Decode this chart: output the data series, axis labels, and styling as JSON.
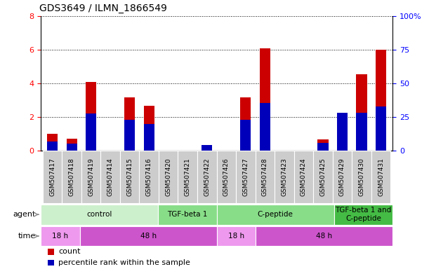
{
  "title": "GDS3649 / ILMN_1866549",
  "samples": [
    "GSM507417",
    "GSM507418",
    "GSM507419",
    "GSM507414",
    "GSM507415",
    "GSM507416",
    "GSM507420",
    "GSM507421",
    "GSM507422",
    "GSM507426",
    "GSM507427",
    "GSM507428",
    "GSM507423",
    "GSM507424",
    "GSM507425",
    "GSM507429",
    "GSM507430",
    "GSM507431"
  ],
  "count_values": [
    1.0,
    0.7,
    4.1,
    0.0,
    3.15,
    2.65,
    0.0,
    0.0,
    0.0,
    0.0,
    3.15,
    6.1,
    0.0,
    0.0,
    0.65,
    0.0,
    4.55,
    6.0
  ],
  "percentile_values": [
    7.0,
    5.0,
    27.5,
    0.0,
    23.0,
    20.0,
    0.0,
    0.0,
    4.0,
    0.0,
    23.0,
    35.5,
    0.0,
    0.0,
    5.5,
    28.0,
    28.0,
    33.0
  ],
  "ylim_left": [
    0,
    8
  ],
  "ylim_right": [
    0,
    100
  ],
  "yticks_left": [
    0,
    2,
    4,
    6,
    8
  ],
  "yticks_right": [
    0,
    25,
    50,
    75,
    100
  ],
  "count_color": "#cc0000",
  "percentile_color": "#0000bb",
  "agent_groups": [
    {
      "label": "control",
      "start": 0,
      "end": 6,
      "color": "#ccf0cc"
    },
    {
      "label": "TGF-beta 1",
      "start": 6,
      "end": 9,
      "color": "#88dd88"
    },
    {
      "label": "C-peptide",
      "start": 9,
      "end": 15,
      "color": "#88dd88"
    },
    {
      "label": "TGF-beta 1 and\nC-peptide",
      "start": 15,
      "end": 18,
      "color": "#44bb44"
    }
  ],
  "time_groups": [
    {
      "label": "18 h",
      "start": 0,
      "end": 2,
      "color": "#ee99ee"
    },
    {
      "label": "48 h",
      "start": 2,
      "end": 9,
      "color": "#cc55cc"
    },
    {
      "label": "18 h",
      "start": 9,
      "end": 11,
      "color": "#ee99ee"
    },
    {
      "label": "48 h",
      "start": 11,
      "end": 18,
      "color": "#cc55cc"
    }
  ],
  "legend_items": [
    {
      "label": "count",
      "color": "#cc0000"
    },
    {
      "label": "percentile rank within the sample",
      "color": "#0000bb"
    }
  ],
  "sample_bg_color": "#cccccc",
  "bar_width": 0.55,
  "tick_fontsize": 6.5,
  "title_fontsize": 10,
  "row_label_fontsize": 8,
  "group_label_fontsize": 7.5,
  "legend_fontsize": 8
}
